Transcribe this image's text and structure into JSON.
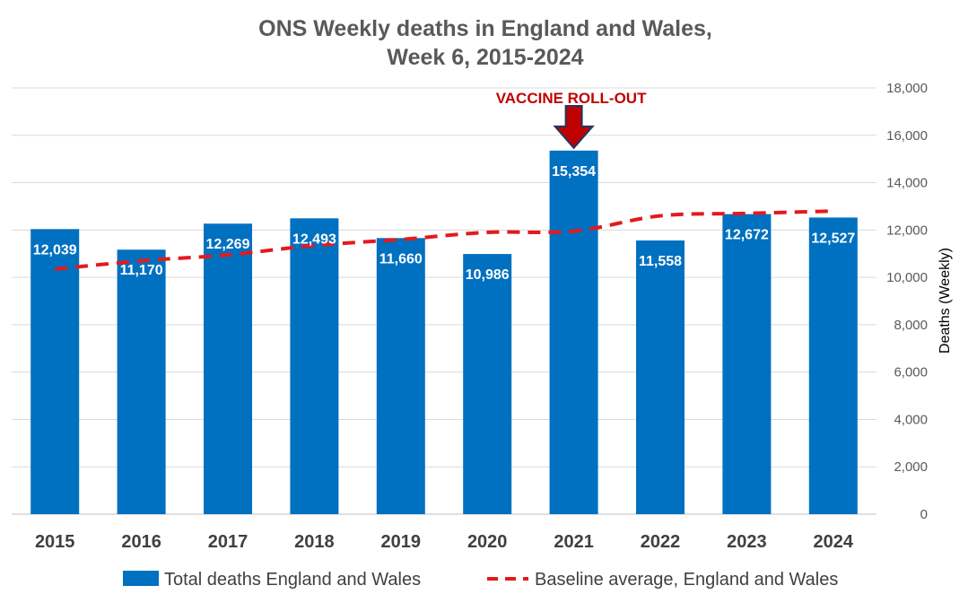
{
  "chart_data": {
    "type": "bar",
    "title": [
      "ONS Weekly deaths in England and Wales,",
      "Week 6, 2015-2024"
    ],
    "categories": [
      "2015",
      "2016",
      "2017",
      "2018",
      "2019",
      "2020",
      "2021",
      "2022",
      "2023",
      "2024"
    ],
    "series": [
      {
        "name": "Total deaths England and Wales",
        "type": "bar",
        "color": "#0070C0",
        "values": [
          12039,
          11170,
          12269,
          12493,
          11660,
          10986,
          15354,
          11558,
          12672,
          12527
        ],
        "labels": [
          "12,039",
          "11,170",
          "12,269",
          "12,493",
          "11,660",
          "10,986",
          "15,354",
          "11,558",
          "12,672",
          "12,527"
        ]
      },
      {
        "name": "Baseline average, England and Wales",
        "type": "line",
        "style": "dashed",
        "color": "#E31A1C",
        "values": [
          10350,
          10700,
          10950,
          11350,
          11600,
          11900,
          11950,
          12600,
          12700,
          12800
        ]
      }
    ],
    "ylabel": "Deaths (Weekly)",
    "y_axis_position": "right",
    "ylim": [
      0,
      18000
    ],
    "yticks": [
      0,
      2000,
      4000,
      6000,
      8000,
      10000,
      12000,
      14000,
      16000,
      18000
    ],
    "ytick_labels": [
      "0",
      "2,000",
      "4,000",
      "6,000",
      "8,000",
      "10,000",
      "12,000",
      "14,000",
      "16,000",
      "18,000"
    ],
    "grid": true,
    "legend_position": "bottom",
    "annotation": {
      "text": "VACCINE ROLL-OUT",
      "category": "2021",
      "color": "#C00000",
      "arrow": "down-arrow-icon"
    }
  }
}
